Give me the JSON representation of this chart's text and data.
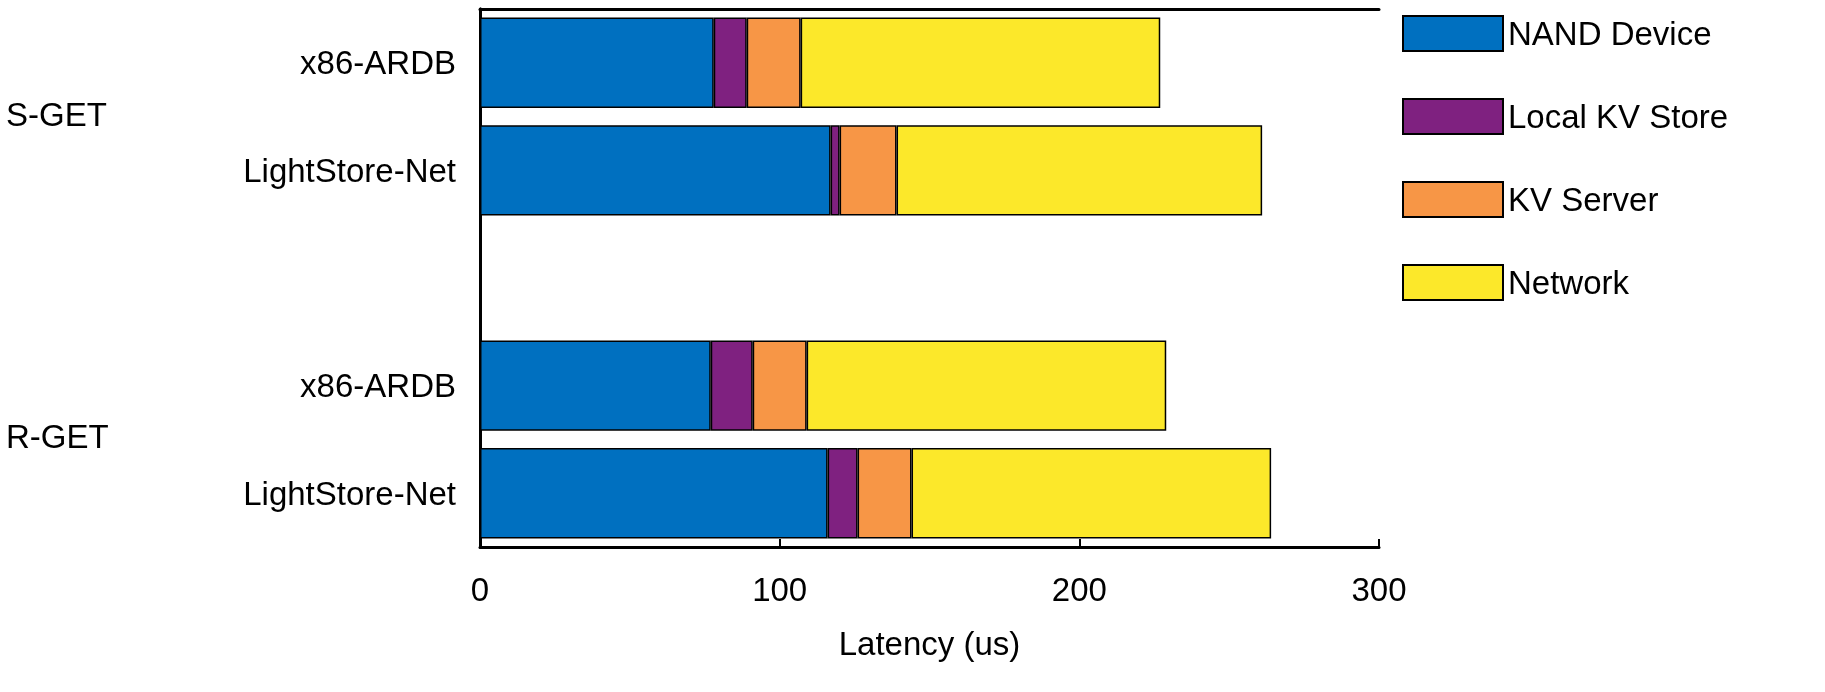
{
  "chart_data": {
    "type": "bar",
    "orientation": "horizontal",
    "stacked": true,
    "xlabel": "Latency (us)",
    "categories": [
      "x86-ARDB",
      "LightStore-Net",
      null,
      "x86-ARDB",
      "LightStore-Net"
    ],
    "series": [
      {
        "name": "NAND Device",
        "color": "#0070c0",
        "values": [
          78,
          117,
          null,
          77,
          116
        ]
      },
      {
        "name": "Local KV Store",
        "color": "#7f2180",
        "values": [
          11,
          3,
          null,
          14,
          10
        ]
      },
      {
        "name": "KV Server",
        "color": "#f79646",
        "values": [
          18,
          19,
          null,
          18,
          18
        ]
      },
      {
        "name": "Network",
        "color": "#fce82a",
        "values": [
          120,
          122,
          null,
          120,
          120
        ]
      }
    ],
    "xlim": [
      0,
      300
    ],
    "xticks": [
      0,
      100,
      200,
      300
    ],
    "legend": "top right",
    "grid": false,
    "annotations": [
      "S-GET",
      "R-GET"
    ]
  }
}
